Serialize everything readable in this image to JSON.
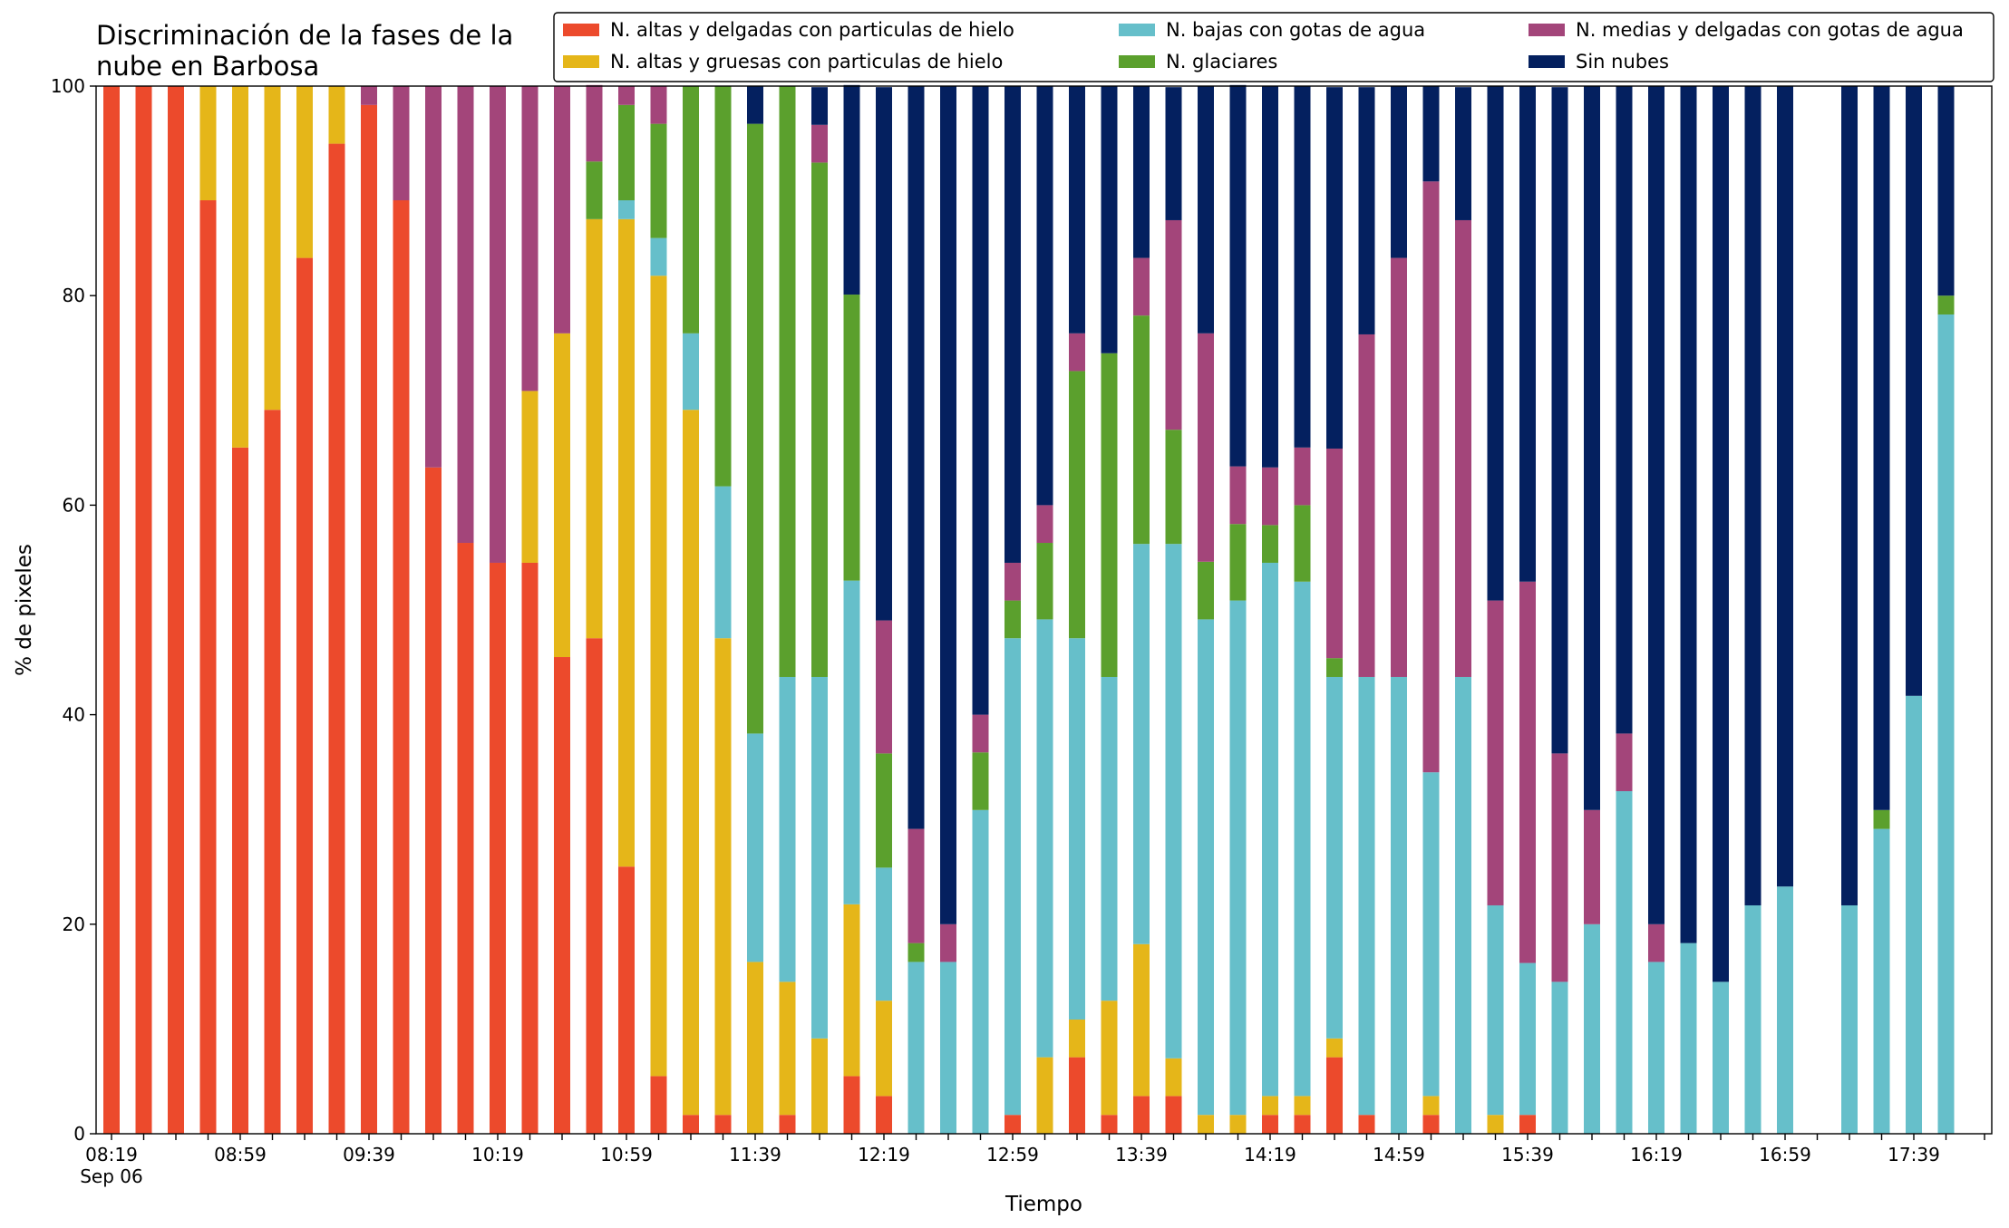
{
  "chart_data": {
    "type": "stacked_bar",
    "title": "Discriminación de la fases de la\nnube en Barbosa",
    "xlabel": "Tiempo",
    "ylabel": "% de pixeles",
    "x_sublabel": "Sep 06",
    "categories": [
      "08:19",
      null,
      null,
      null,
      "08:59",
      null,
      null,
      null,
      "09:39",
      null,
      null,
      null,
      "10:19",
      null,
      null,
      null,
      "10:59",
      null,
      null,
      null,
      "11:39",
      null,
      null,
      null,
      "12:19",
      null,
      null,
      null,
      "12:59",
      null,
      null,
      null,
      "13:39",
      null,
      null,
      null,
      "14:19",
      null,
      null,
      null,
      "14:59",
      null,
      null,
      null,
      "15:39",
      null,
      null,
      null,
      "16:19",
      null,
      null,
      null,
      "16:59",
      null,
      null,
      null,
      "17:39",
      null
    ],
    "ylim": [
      0,
      100
    ],
    "yticks": [
      0,
      20,
      40,
      60,
      80,
      100
    ],
    "legend": "top-right",
    "series": [
      {
        "name": "N. altas y delgadas con particulas de hielo",
        "color": "#ec4a2c",
        "values": [
          100,
          100,
          100,
          89.1,
          65.5,
          69.1,
          83.6,
          94.5,
          98.2,
          89.1,
          63.6,
          56.4,
          54.5,
          54.5,
          45.5,
          47.3,
          25.5,
          5.5,
          1.8,
          1.8,
          0,
          1.8,
          0,
          5.5,
          3.6,
          0,
          0,
          0,
          1.8,
          0,
          7.3,
          1.8,
          3.6,
          3.6,
          0,
          0,
          1.8,
          1.8,
          7.3,
          1.8,
          0,
          1.8,
          0,
          0,
          1.8,
          0,
          0,
          0,
          0,
          0,
          0,
          0,
          0,
          null,
          0,
          0,
          0,
          0
        ]
      },
      {
        "name": "N. altas y gruesas con particulas de hielo",
        "color": "#e5b619",
        "values": [
          0,
          0,
          0,
          10.9,
          34.5,
          30.9,
          16.4,
          5.5,
          0,
          0,
          0,
          0,
          0,
          16.4,
          30.9,
          40,
          61.8,
          76.4,
          67.3,
          45.5,
          16.4,
          12.7,
          9.1,
          16.4,
          9.1,
          0,
          0,
          0,
          0,
          7.3,
          3.6,
          10.9,
          14.5,
          3.6,
          1.8,
          1.8,
          1.8,
          1.8,
          1.8,
          0,
          0,
          1.8,
          0,
          1.8,
          0,
          0,
          0,
          0,
          0,
          0,
          0,
          0,
          0,
          null,
          0,
          0,
          0,
          0
        ]
      },
      {
        "name": "N. bajas con gotas de agua",
        "color": "#66bfca",
        "values": [
          0,
          0,
          0,
          0,
          0,
          0,
          0,
          0,
          0,
          0,
          0,
          0,
          0,
          0,
          0,
          0,
          1.8,
          3.6,
          7.3,
          14.5,
          21.8,
          29.1,
          34.5,
          30.9,
          12.7,
          16.4,
          16.4,
          30.9,
          45.5,
          41.8,
          36.4,
          30.9,
          38.2,
          49.1,
          47.3,
          49.1,
          50.9,
          49.1,
          34.5,
          41.8,
          43.6,
          30.9,
          43.6,
          20,
          14.5,
          14.5,
          20,
          32.7,
          16.4,
          18.2,
          14.5,
          21.8,
          23.6,
          null,
          21.8,
          29.1,
          41.8,
          78.2
        ]
      },
      {
        "name": "N. glaciares",
        "color": "#5ba02d",
        "values": [
          0,
          0,
          0,
          0,
          0,
          0,
          0,
          0,
          0,
          0,
          0,
          0,
          0,
          0,
          0,
          5.5,
          9.1,
          10.9,
          23.6,
          38.2,
          58.2,
          56.4,
          49.1,
          27.3,
          10.9,
          1.8,
          0,
          5.5,
          3.6,
          7.3,
          25.5,
          30.9,
          21.8,
          10.9,
          5.5,
          7.3,
          3.6,
          7.3,
          1.8,
          0,
          0,
          0,
          0,
          0,
          0,
          0,
          0,
          0,
          0,
          0,
          0,
          0,
          0,
          null,
          0,
          1.8,
          0,
          1.8
        ]
      },
      {
        "name": "N. medias y delgadas con gotas de agua",
        "color": "#a3457a",
        "values": [
          0,
          0,
          0,
          0,
          0,
          0,
          0,
          0,
          1.8,
          10.9,
          36.4,
          43.6,
          45.5,
          29.1,
          23.6,
          7.3,
          1.8,
          3.6,
          0,
          0,
          0,
          0,
          3.6,
          0,
          12.7,
          10.9,
          3.6,
          3.6,
          3.6,
          3.6,
          3.6,
          0,
          5.5,
          20,
          21.8,
          5.5,
          5.5,
          5.5,
          20,
          32.7,
          40,
          56.4,
          43.6,
          29.1,
          36.4,
          21.8,
          10.9,
          5.5,
          3.6,
          0,
          0,
          0,
          0,
          null,
          0,
          0,
          0,
          0
        ]
      },
      {
        "name": "Sin nubes",
        "color": "#04205f",
        "values": [
          0,
          0,
          0,
          0,
          0,
          0,
          0,
          0,
          0,
          0,
          0,
          0,
          0,
          0,
          0,
          0,
          0,
          0,
          0,
          0,
          3.6,
          0,
          3.6,
          20,
          50.9,
          70.9,
          80,
          60,
          45.5,
          40,
          23.6,
          25.5,
          16.4,
          12.7,
          23.6,
          36.4,
          36.4,
          34.5,
          34.5,
          23.6,
          16.4,
          9.1,
          12.7,
          49.1,
          47.3,
          63.6,
          69.1,
          61.8,
          80,
          81.8,
          85.5,
          78.2,
          76.4,
          null,
          78.2,
          69.1,
          58.2,
          20
        ]
      }
    ]
  }
}
